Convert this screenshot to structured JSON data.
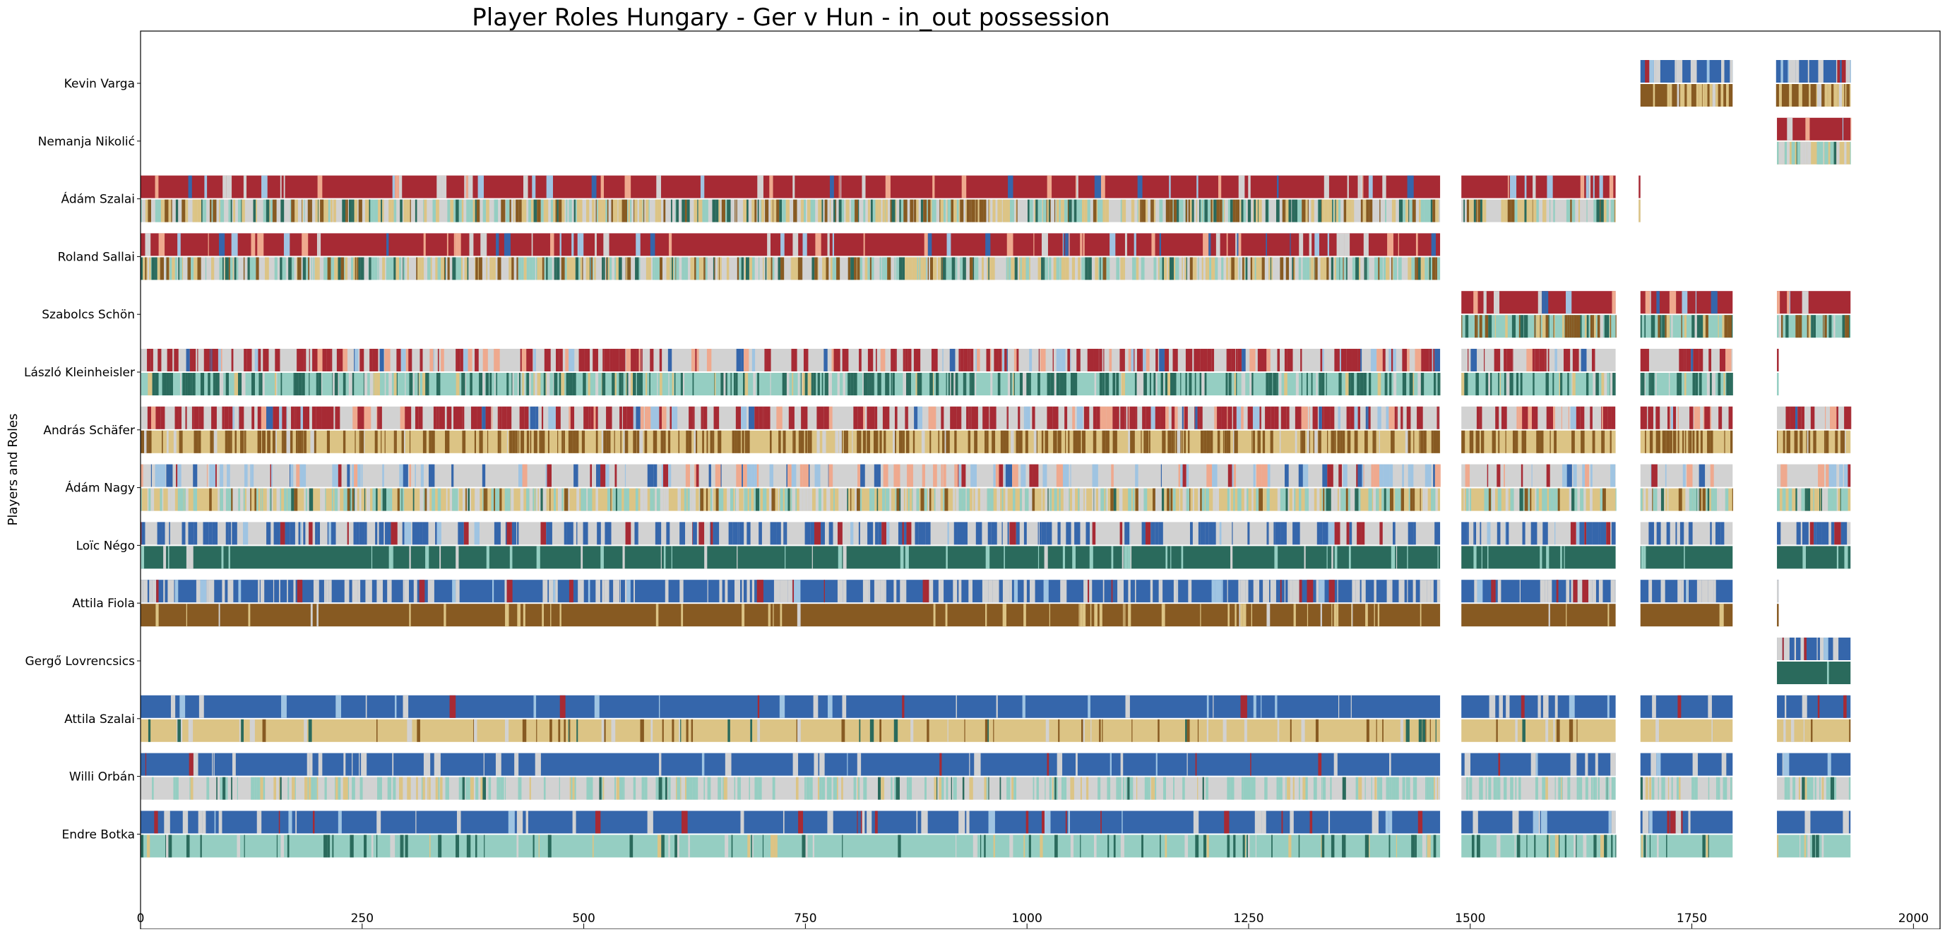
{
  "chart_data": {
    "type": "timeline",
    "title": "Player Roles Hungary - Ger v Hun - in_out possession",
    "ylabel": "Players and Roles",
    "xlim": [
      0,
      2030
    ],
    "xticks": [
      0,
      250,
      500,
      750,
      1000,
      1250,
      1500,
      1750,
      2000
    ],
    "players": [
      "Kevin Varga",
      "Nemanja Nikolić",
      "Ádám Szalai",
      "Roland Sallai",
      "Szabolcs Schön",
      "László Kleinheisler",
      "András Schäfer",
      "Ádám Nagy",
      "Loïc Négo",
      "Attila Fiola",
      "Gergő Lovrencsics",
      "Attila Szalai",
      "Willi Orbán",
      "Endre Botka"
    ],
    "segments": [
      {
        "player": "Kevin Varga",
        "intervals": [
          [
            1692,
            1796
          ],
          [
            1845,
            1929
          ]
        ],
        "top_palette": "attack_blue",
        "bottom_palette": "brown_tan"
      },
      {
        "player": "Nemanja Nikolić",
        "intervals": [
          [
            1846,
            1929
          ]
        ],
        "top_palette": "red",
        "bottom_palette": "tan_teal"
      },
      {
        "player": "Ádám Szalai",
        "intervals": [
          [
            0,
            1466
          ],
          [
            1490,
            1664
          ],
          [
            1690,
            1692
          ]
        ],
        "top_palette": "red",
        "bottom_palette": "mixed"
      },
      {
        "player": "Roland Sallai",
        "intervals": [
          [
            0,
            1466
          ]
        ],
        "top_palette": "red",
        "bottom_palette": "mixed"
      },
      {
        "player": "Szabolcs Schön",
        "intervals": [
          [
            1490,
            1664
          ],
          [
            1692,
            1796
          ],
          [
            1846,
            1929
          ]
        ],
        "top_palette": "red",
        "bottom_palette": "teal_brown"
      },
      {
        "player": "László Kleinheisler",
        "intervals": [
          [
            0,
            1466
          ],
          [
            1490,
            1664
          ],
          [
            1692,
            1796
          ],
          [
            1846,
            1848
          ]
        ],
        "top_palette": "mid_red",
        "bottom_palette": "teal"
      },
      {
        "player": "András Schäfer",
        "intervals": [
          [
            0,
            1466
          ],
          [
            1490,
            1664
          ],
          [
            1692,
            1796
          ],
          [
            1846,
            1929
          ]
        ],
        "top_palette": "mid_red",
        "bottom_palette": "tan_brown"
      },
      {
        "player": "Ádám Nagy",
        "intervals": [
          [
            0,
            1466
          ],
          [
            1490,
            1664
          ],
          [
            1692,
            1796
          ],
          [
            1846,
            1929
          ]
        ],
        "top_palette": "grey_mix",
        "bottom_palette": "tan_teal"
      },
      {
        "player": "Loïc Négo",
        "intervals": [
          [
            0,
            1466
          ],
          [
            1490,
            1664
          ],
          [
            1692,
            1796
          ],
          [
            1846,
            1929
          ]
        ],
        "top_palette": "grey_blue",
        "bottom_palette": "dark_teal"
      },
      {
        "player": "Attila Fiola",
        "intervals": [
          [
            0,
            1466
          ],
          [
            1490,
            1664
          ],
          [
            1692,
            1796
          ],
          [
            1846,
            1848
          ]
        ],
        "top_palette": "blue_grey",
        "bottom_palette": "brown"
      },
      {
        "player": "Gergő Lovrencsics",
        "intervals": [
          [
            1846,
            1929
          ]
        ],
        "top_palette": "blue_grey",
        "bottom_palette": "dark_teal"
      },
      {
        "player": "Attila Szalai",
        "intervals": [
          [
            0,
            1466
          ],
          [
            1490,
            1664
          ],
          [
            1692,
            1796
          ],
          [
            1846,
            1929
          ]
        ],
        "top_palette": "blue",
        "bottom_palette": "tan"
      },
      {
        "player": "Willi Orbán",
        "intervals": [
          [
            0,
            1466
          ],
          [
            1490,
            1664
          ],
          [
            1692,
            1796
          ],
          [
            1846,
            1929
          ]
        ],
        "top_palette": "blue",
        "bottom_palette": "grey_teal"
      },
      {
        "player": "Endre Botka",
        "intervals": [
          [
            0,
            1466
          ],
          [
            1490,
            1664
          ],
          [
            1692,
            1796
          ],
          [
            1846,
            1929
          ]
        ],
        "top_palette": "blue",
        "bottom_palette": "light_teal"
      }
    ],
    "colors": {
      "red": "#a72a34",
      "blue": "#3566ab",
      "grey": "#d2d2d2",
      "light_blue": "#9fc4e2",
      "salmon": "#efa98e",
      "dark_teal": "#2a6a5c",
      "light_teal": "#95cec2",
      "tan": "#dcc485",
      "brown": "#875a22",
      "axis": "#000000",
      "background": "#ffffff"
    }
  }
}
